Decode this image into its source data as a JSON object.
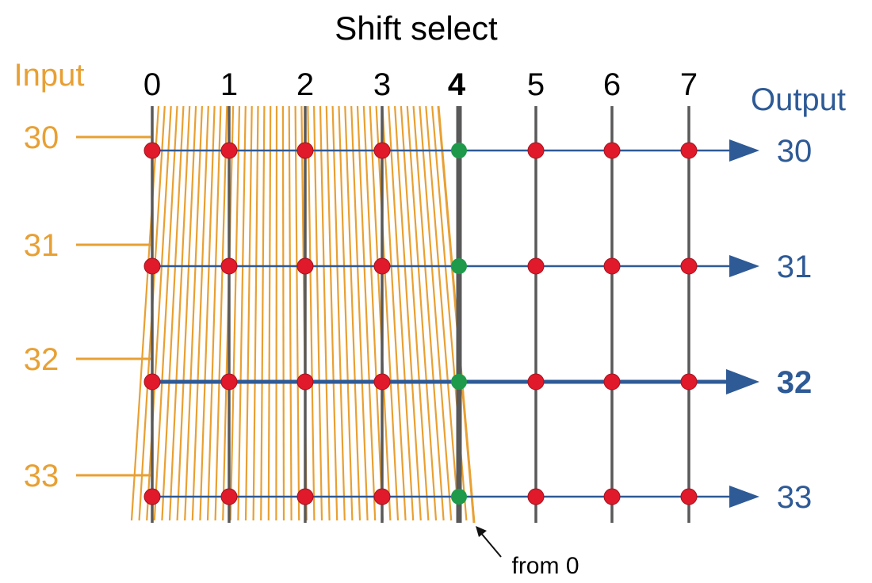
{
  "title": "Shift select",
  "input_label": "Input",
  "output_label": "Output",
  "shift_columns": [
    "0",
    "1",
    "2",
    "3",
    "4",
    "5",
    "6",
    "7"
  ],
  "selected_shift_index": 4,
  "input_rows": [
    "30",
    "31",
    "32",
    "33"
  ],
  "output_rows": [
    "30",
    "31",
    "32",
    "33"
  ],
  "highlighted_output_index": 2,
  "annotation": "from 0",
  "colors": {
    "input": "#E8A033",
    "output": "#2E5A96",
    "grid_line": "#595959",
    "node": "#E0192B",
    "selected_node": "#1E9A4A",
    "arrow": "#111111"
  }
}
